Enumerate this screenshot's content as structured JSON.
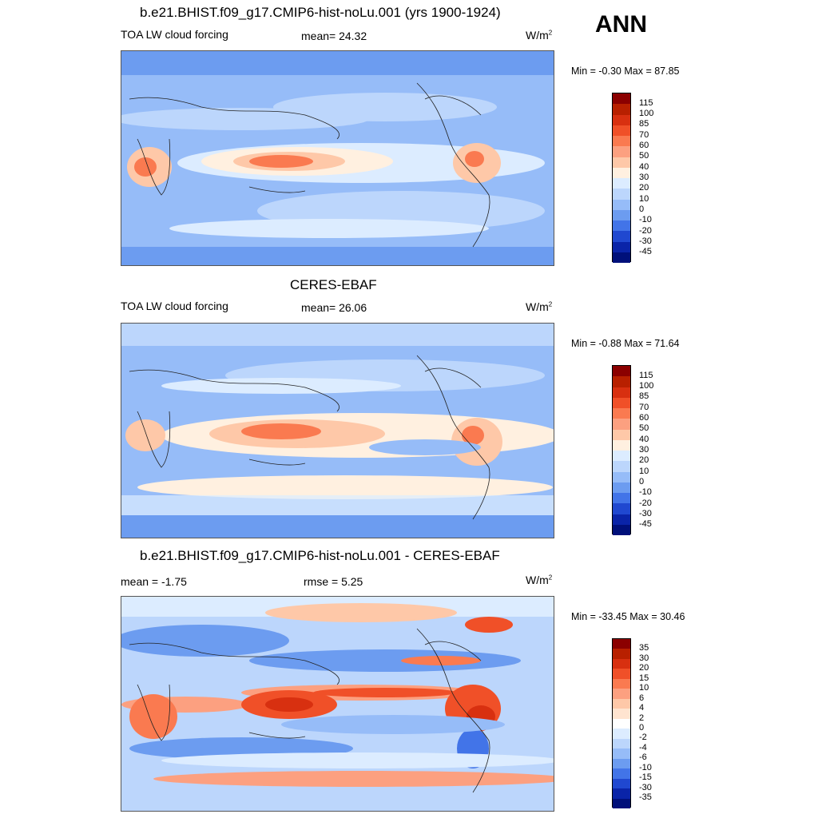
{
  "season": "ANN",
  "panels": [
    {
      "id": "model",
      "title": "b.e21.BHIST.f09_g17.CMIP6-hist-noLu.001 (yrs 1900-1924)",
      "left_label": "TOA LW cloud forcing",
      "center_label": "mean=  24.32",
      "units_base": "W/m",
      "units_exp": "2",
      "minmax": "Min =  -0.30 Max =  87.85",
      "levels": [
        "115",
        "100",
        "85",
        "70",
        "60",
        "50",
        "40",
        "30",
        "20",
        "10",
        "0",
        "-10",
        "-20",
        "-30",
        "-45"
      ],
      "colors": [
        "#8b0000",
        "#b82000",
        "#d83010",
        "#f05028",
        "#fa7a50",
        "#fca080",
        "#fec8a8",
        "#fff0e0",
        "#dcecff",
        "#bcd6fc",
        "#96bcf8",
        "#6c9cf0",
        "#4274e8",
        "#2048d0",
        "#0a24a8",
        "#00107a"
      ]
    },
    {
      "id": "obs",
      "title": "CERES-EBAF",
      "left_label": "TOA LW cloud forcing",
      "center_label": "mean=  26.06",
      "units_base": "W/m",
      "units_exp": "2",
      "minmax": "Min =  -0.88 Max =  71.64",
      "levels": [
        "115",
        "100",
        "85",
        "70",
        "60",
        "50",
        "40",
        "30",
        "20",
        "10",
        "0",
        "-10",
        "-20",
        "-30",
        "-45"
      ],
      "colors": [
        "#8b0000",
        "#b82000",
        "#d83010",
        "#f05028",
        "#fa7a50",
        "#fca080",
        "#fec8a8",
        "#fff0e0",
        "#dcecff",
        "#bcd6fc",
        "#96bcf8",
        "#6c9cf0",
        "#4274e8",
        "#2048d0",
        "#0a24a8",
        "#00107a"
      ]
    },
    {
      "id": "diff",
      "title": "b.e21.BHIST.f09_g17.CMIP6-hist-noLu.001 - CERES-EBAF",
      "left_label": "mean =  -1.75",
      "center_label": "rmse =   5.25",
      "units_base": "W/m",
      "units_exp": "2",
      "minmax": "Min = -33.45 Max =  30.46",
      "levels": [
        "35",
        "30",
        "20",
        "15",
        "10",
        "6",
        "4",
        "2",
        "0",
        "-2",
        "-4",
        "-6",
        "-10",
        "-15",
        "-30",
        "-35"
      ],
      "colors": [
        "#8b0000",
        "#b82000",
        "#d83010",
        "#f05028",
        "#fa7a50",
        "#fca080",
        "#fec8a8",
        "#ffe4d0",
        "#ffffff",
        "#dcecff",
        "#bcd6fc",
        "#96bcf8",
        "#6c9cf0",
        "#4274e8",
        "#2048d0",
        "#0a24a8",
        "#00107a"
      ]
    }
  ]
}
